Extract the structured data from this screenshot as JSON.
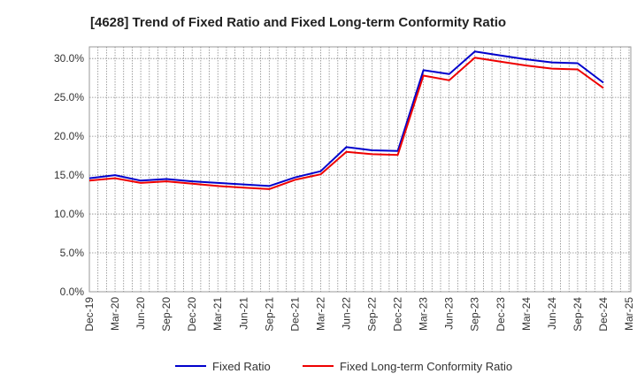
{
  "chart_data": {
    "type": "line",
    "title": "[4628]  Trend of Fixed Ratio and Fixed Long-term Conformity Ratio",
    "xlabel": "",
    "ylabel": "",
    "ylim": [
      0,
      0.315
    ],
    "y_ticks": [
      0.0,
      0.05,
      0.1,
      0.15,
      0.2,
      0.25,
      0.3
    ],
    "y_tick_labels": [
      "0.0%",
      "5.0%",
      "10.0%",
      "15.0%",
      "20.0%",
      "25.0%",
      "30.0%"
    ],
    "categories": [
      "Dec-19",
      "Mar-20",
      "Jun-20",
      "Sep-20",
      "Dec-20",
      "Mar-21",
      "Jun-21",
      "Sep-21",
      "Dec-21",
      "Mar-22",
      "Jun-22",
      "Sep-22",
      "Dec-22",
      "Mar-23",
      "Jun-23",
      "Sep-23",
      "Dec-23",
      "Mar-24",
      "Jun-24",
      "Sep-24",
      "Dec-24",
      "Mar-25"
    ],
    "grid": true,
    "legend_position": "bottom",
    "series": [
      {
        "name": "Fixed Ratio",
        "color": "#0000cc",
        "values": [
          0.146,
          0.15,
          0.143,
          0.145,
          0.142,
          0.14,
          0.138,
          0.136,
          0.147,
          0.155,
          0.186,
          0.182,
          0.181,
          0.285,
          0.28,
          0.309,
          0.304,
          0.299,
          0.295,
          0.294,
          0.269,
          null
        ]
      },
      {
        "name": "Fixed Long-term Conformity Ratio",
        "color": "#ee0000",
        "values": [
          0.143,
          0.146,
          0.14,
          0.142,
          0.139,
          0.136,
          0.134,
          0.132,
          0.144,
          0.151,
          0.18,
          0.177,
          0.176,
          0.278,
          0.272,
          0.301,
          0.296,
          0.291,
          0.287,
          0.286,
          0.262,
          null
        ]
      }
    ]
  }
}
